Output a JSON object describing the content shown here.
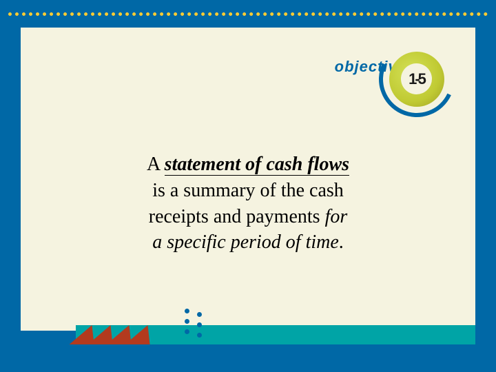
{
  "slide": {
    "background_color": "#0068a6",
    "panel_color": "#f5f3e0",
    "dotted_border_color": "#ffcc33",
    "bottom_strip_color": "#00a4a6",
    "zig_color": "#b33a1e"
  },
  "header": {
    "objective_label": "objective",
    "badge_number": "1-5",
    "swirl_outer_color": "#0068a6",
    "swirl_fill_color": "#c0ca33"
  },
  "body": {
    "line1_prefix": "A ",
    "line1_em": "statement of cash flows",
    "line2": "is a summary of the cash",
    "line3_prefix": "receipts and payments ",
    "line3_em": "for",
    "line4_em": "a specific period of time",
    "line4_suffix": ".",
    "font_size": 28,
    "text_color": "#000000"
  }
}
